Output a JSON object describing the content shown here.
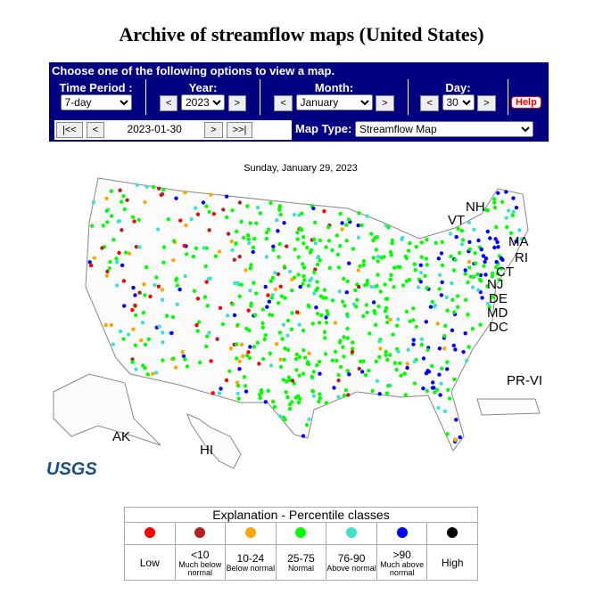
{
  "header": {
    "title": "Archive of streamflow maps (United States)"
  },
  "form": {
    "prompt": "Choose one of the following options to view a map.",
    "time_period": {
      "label": "Time Period :",
      "value": "7-day"
    },
    "year": {
      "label": "Year:",
      "prev": "<",
      "value": "2023",
      "next": ">"
    },
    "month": {
      "label": "Month:",
      "prev": "<",
      "value": "January",
      "next": ">"
    },
    "day": {
      "label": "Day:",
      "prev": "<",
      "value": "30",
      "next": ">"
    },
    "help": "Help",
    "nav": {
      "first": "|<<",
      "prev": "<",
      "date": "2023-01-30",
      "next": ">",
      "last": ">>|"
    },
    "map_type": {
      "label": "Map Type:",
      "value": "Streamflow Map"
    }
  },
  "map": {
    "date": "Sunday, January 29, 2023",
    "labels": [
      "NH",
      "VT",
      "MA",
      "RI",
      "CT",
      "NJ",
      "DE",
      "MD",
      "DC",
      "PR-VI",
      "AK",
      "HI"
    ],
    "logo": "USGS"
  },
  "legend": {
    "title": "Explanation - Percentile classes",
    "classes": [
      {
        "color": "#ff0000",
        "label": "Low"
      },
      {
        "color": "#b22222",
        "label": "<10",
        "note": "Much below normal"
      },
      {
        "color": "#ffa500",
        "label": "10-24",
        "note": "Below normal"
      },
      {
        "color": "#00ff00",
        "label": "25-75",
        "note": "Normal"
      },
      {
        "color": "#40e0d0",
        "label": "76-90",
        "note": "Above normal"
      },
      {
        "color": "#0000ff",
        "label": ">90",
        "note": "Much above normal"
      },
      {
        "color": "#000000",
        "label": "High"
      }
    ]
  }
}
